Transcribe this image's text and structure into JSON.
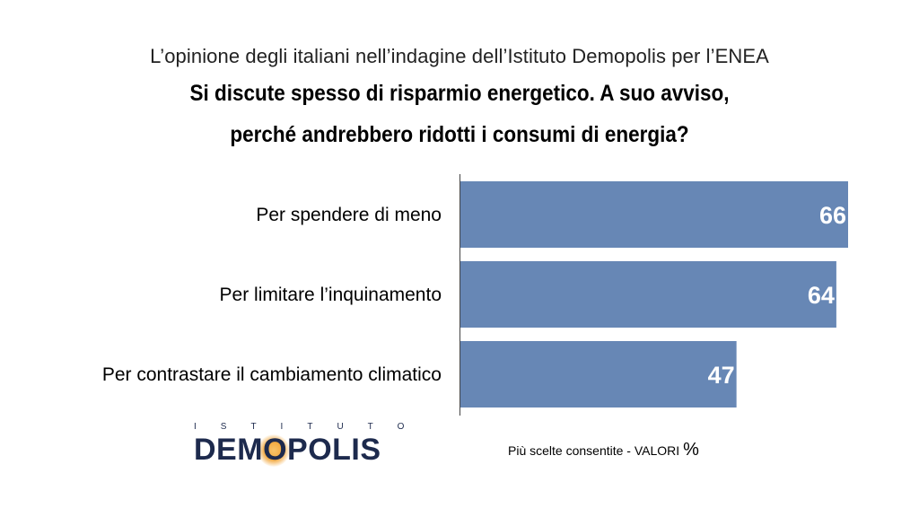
{
  "header": {
    "subtitle": "L’opinione degli italiani nell’indagine dell’Istituto Demopolis per l’ENEA",
    "title_line1": "Si discute spesso di risparmio energetico. A suo avviso,",
    "title_line2": "perché andrebbero ridotti i consumi di energia?"
  },
  "chart_data": {
    "type": "bar",
    "orientation": "horizontal",
    "categories": [
      "Per spendere di meno",
      "Per limitare l’inquinamento",
      "Per contrastare il cambiamento climatico"
    ],
    "values": [
      66,
      64,
      47
    ],
    "value_labels": [
      "66",
      "64",
      "47"
    ],
    "bar_color": "#6787b5",
    "xlim": [
      0,
      66
    ],
    "grid": false
  },
  "footer": {
    "logo_top": "ISTITUTO",
    "logo_main_a": "DEM",
    "logo_main_o": "O",
    "logo_main_b": "POLIS",
    "note_text": "Più scelte consentite - VALORI ",
    "note_unit": "%"
  }
}
